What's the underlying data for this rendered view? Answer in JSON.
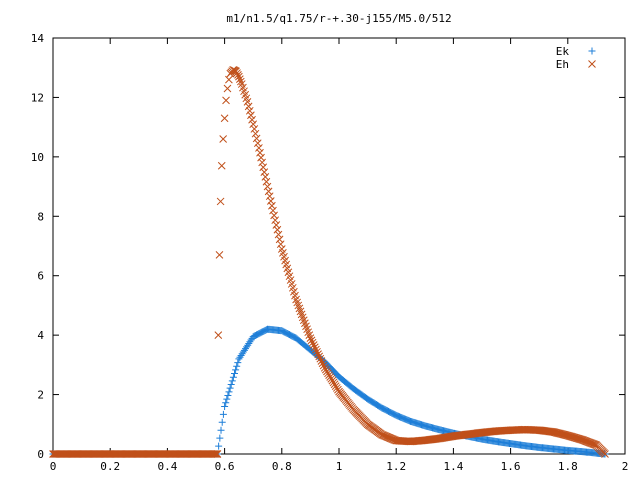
{
  "chart_data": {
    "type": "scatter",
    "title": "m1/n1.5/q1.75/r-+.30-j155/M5.0/512",
    "xlabel": "",
    "ylabel": "",
    "xlim": [
      0,
      2
    ],
    "ylim": [
      0,
      14
    ],
    "x_ticks": [
      "0",
      "0.2",
      "0.4",
      "0.6",
      "0.8",
      "1",
      "1.2",
      "1.4",
      "1.6",
      "1.8",
      "2"
    ],
    "y_ticks": [
      "0",
      "2",
      "4",
      "6",
      "8",
      "10",
      "12",
      "14"
    ],
    "grid": false,
    "legend_position": "top-right",
    "x_domain": [
      0,
      1.93
    ],
    "onset_x": 0.575,
    "series": [
      {
        "name": "Ek",
        "marker": "plus",
        "color": "#1f7fd8",
        "points": [
          [
            0.575,
            0.0
          ],
          [
            0.6,
            1.6
          ],
          [
            0.65,
            3.2
          ],
          [
            0.7,
            3.95
          ],
          [
            0.75,
            4.2
          ],
          [
            0.8,
            4.15
          ],
          [
            0.85,
            3.9
          ],
          [
            0.9,
            3.5
          ],
          [
            0.95,
            3.1
          ],
          [
            1.0,
            2.6
          ],
          [
            1.05,
            2.2
          ],
          [
            1.1,
            1.85
          ],
          [
            1.15,
            1.55
          ],
          [
            1.2,
            1.3
          ],
          [
            1.25,
            1.1
          ],
          [
            1.3,
            0.95
          ],
          [
            1.35,
            0.82
          ],
          [
            1.4,
            0.7
          ],
          [
            1.45,
            0.6
          ],
          [
            1.5,
            0.5
          ],
          [
            1.55,
            0.42
          ],
          [
            1.6,
            0.35
          ],
          [
            1.65,
            0.28
          ],
          [
            1.7,
            0.22
          ],
          [
            1.75,
            0.17
          ],
          [
            1.8,
            0.12
          ],
          [
            1.85,
            0.08
          ],
          [
            1.9,
            0.03
          ],
          [
            1.93,
            0.0
          ]
        ]
      },
      {
        "name": "Eh",
        "marker": "cross",
        "color": "#c0501a",
        "points": [
          [
            0.575,
            0.0
          ],
          [
            0.578,
            4.0
          ],
          [
            0.582,
            6.7
          ],
          [
            0.586,
            8.5
          ],
          [
            0.59,
            9.7
          ],
          [
            0.595,
            10.6
          ],
          [
            0.6,
            11.3
          ],
          [
            0.605,
            11.9
          ],
          [
            0.61,
            12.3
          ],
          [
            0.615,
            12.6
          ],
          [
            0.62,
            12.8
          ],
          [
            0.63,
            12.93
          ],
          [
            0.64,
            12.88
          ],
          [
            0.65,
            12.7
          ],
          [
            0.66,
            12.45
          ],
          [
            0.68,
            11.85
          ],
          [
            0.7,
            11.1
          ],
          [
            0.72,
            10.3
          ],
          [
            0.75,
            9.0
          ],
          [
            0.8,
            6.9
          ],
          [
            0.85,
            5.2
          ],
          [
            0.9,
            3.9
          ],
          [
            0.95,
            2.9
          ],
          [
            1.0,
            2.1
          ],
          [
            1.05,
            1.5
          ],
          [
            1.1,
            1.0
          ],
          [
            1.15,
            0.65
          ],
          [
            1.2,
            0.45
          ],
          [
            1.25,
            0.42
          ],
          [
            1.3,
            0.46
          ],
          [
            1.35,
            0.52
          ],
          [
            1.4,
            0.6
          ],
          [
            1.45,
            0.66
          ],
          [
            1.5,
            0.72
          ],
          [
            1.55,
            0.77
          ],
          [
            1.6,
            0.8
          ],
          [
            1.65,
            0.82
          ],
          [
            1.7,
            0.8
          ],
          [
            1.75,
            0.74
          ],
          [
            1.8,
            0.62
          ],
          [
            1.85,
            0.48
          ],
          [
            1.9,
            0.3
          ],
          [
            1.93,
            0.0
          ]
        ]
      }
    ]
  }
}
